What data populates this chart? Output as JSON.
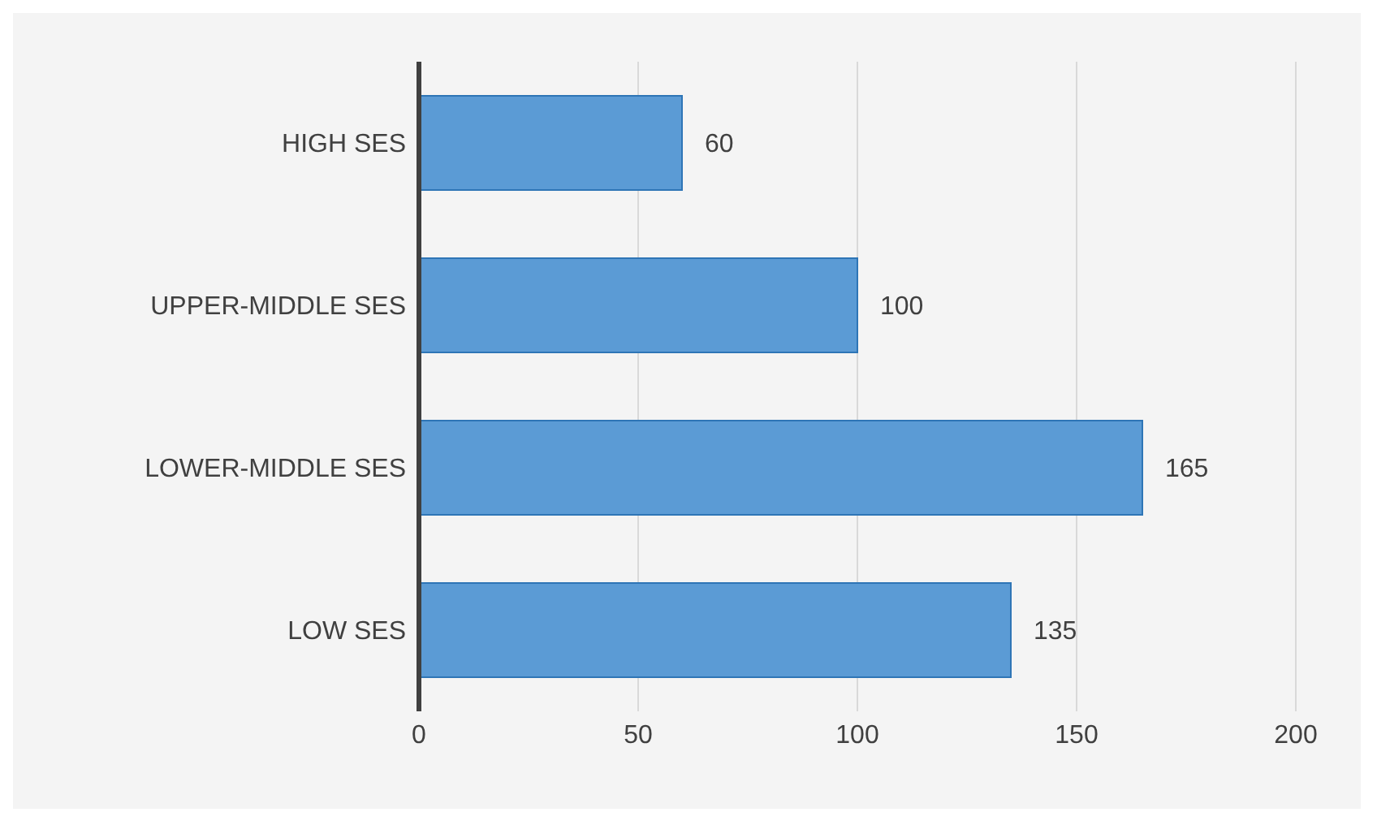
{
  "chart_data": {
    "type": "bar",
    "orientation": "horizontal",
    "categories": [
      "HIGH SES",
      "UPPER-MIDDLE SES",
      "LOWER-MIDDLE SES",
      "LOW SES"
    ],
    "values": [
      60,
      100,
      165,
      135
    ],
    "color": "#5b9bd5",
    "xlim": [
      0,
      200
    ],
    "xticks": [
      0,
      50,
      100,
      150,
      200
    ],
    "grid": "x",
    "data_labels": true
  }
}
